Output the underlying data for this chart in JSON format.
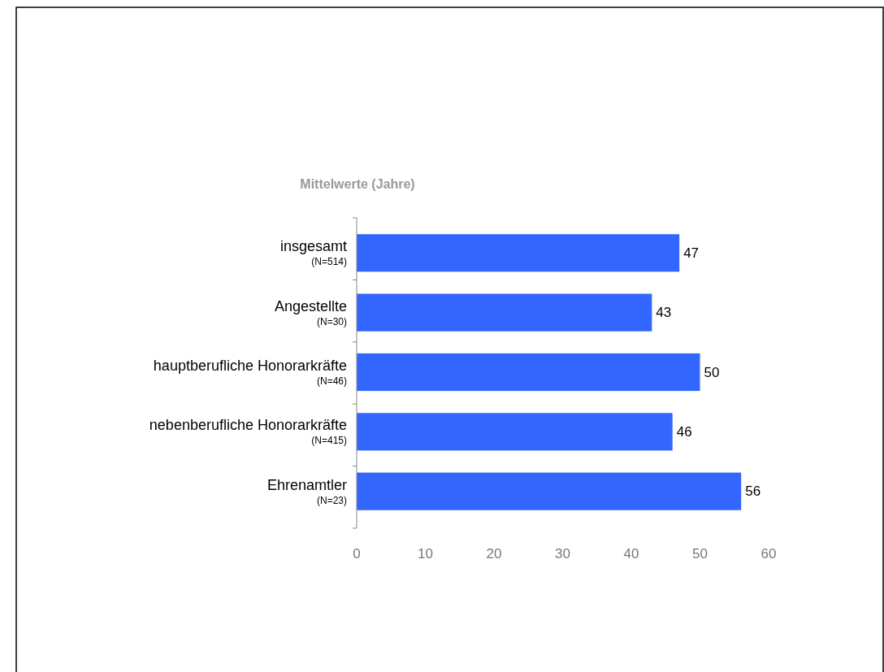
{
  "chart_data": {
    "type": "bar",
    "orientation": "horizontal",
    "title": "Mittelwerte (Jahre)",
    "categories": [
      "insgesamt\n(N=514)",
      "Angestellte\n(N=30)",
      "hauptberufliche Honorarkräfte\n(N=46)",
      "nebenberufliche Honorarkräfte\n(N=415)",
      "Ehrenamtler\n(N=23)"
    ],
    "values": [
      47,
      43,
      50,
      46,
      56
    ],
    "color": "#3366ff",
    "xlim": [
      0,
      60
    ],
    "xticks": [
      0,
      10,
      20,
      30,
      40,
      50,
      60
    ],
    "data_labels": true,
    "grid": false
  }
}
